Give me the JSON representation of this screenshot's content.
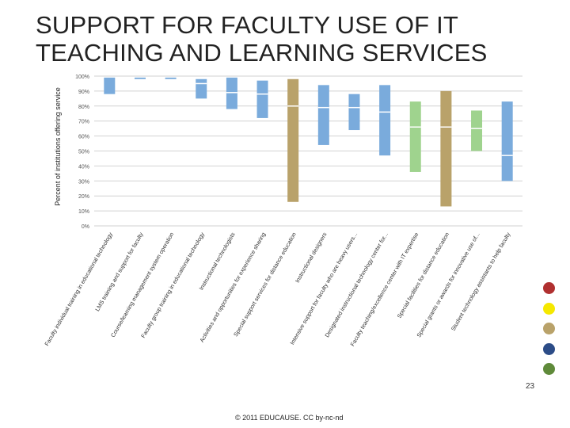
{
  "slide": {
    "title": "SUPPORT FOR FACULTY USE OF IT TEACHING AND LEARNING SERVICES",
    "slide_number": "23",
    "footer": "© 2011 EDUCAUSE. CC by-nc-nd"
  },
  "legend_dots": [
    {
      "name": "red-dot",
      "color": "#b03030"
    },
    {
      "name": "yellow-dot",
      "color": "#f5e800"
    },
    {
      "name": "tan-dot",
      "color": "#b9a26a"
    },
    {
      "name": "navy-dot",
      "color": "#2c4c87"
    },
    {
      "name": "green-dot",
      "color": "#5f8a3a"
    }
  ],
  "chart_data": {
    "type": "bar",
    "subtype": "floating-range-with-median",
    "ylabel": "Percent of institutions offering service",
    "ylim": [
      0,
      100
    ],
    "ytick_labels": [
      "0%",
      "10%",
      "20%",
      "30%",
      "40%",
      "50%",
      "60%",
      "70%",
      "80%",
      "90%",
      "100%"
    ],
    "grid": true,
    "categories": [
      "Faculty individual training in educational technology",
      "LMS training and support for faculty",
      "Course/learning management system operation",
      "Faculty group training in educational technology",
      "Instructional technologists",
      "Activities and opportunities for experience sharing",
      "Special support services for distance education",
      "Instructional designers",
      "Intensive support for faculty who are heavy users...",
      "Designated instructional technology center for...",
      "Faculty teaching/excellence center with IT expertise",
      "Special facilities for distance education",
      "Special grants or awards for innovative use of...",
      "Student technology assistants to help faculty"
    ],
    "ranges": [
      {
        "low": 88,
        "high": 99,
        "median": null,
        "color": "#7aabdc"
      },
      {
        "low": 98,
        "high": 99,
        "median": null,
        "color": "#7aabdc"
      },
      {
        "low": 98,
        "high": 99,
        "median": null,
        "color": "#7aabdc"
      },
      {
        "low": 85,
        "high": 98,
        "median": 95,
        "color": "#7aabdc"
      },
      {
        "low": 78,
        "high": 99,
        "median": 89,
        "color": "#7aabdc"
      },
      {
        "low": 72,
        "high": 97,
        "median": 88,
        "color": "#7aabdc"
      },
      {
        "low": 16,
        "high": 98,
        "median": 80,
        "color": "#b9a26a"
      },
      {
        "low": 54,
        "high": 94,
        "median": 79,
        "color": "#7aabdc"
      },
      {
        "low": 64,
        "high": 88,
        "median": 79,
        "color": "#7aabdc"
      },
      {
        "low": 47,
        "high": 94,
        "median": 76,
        "color": "#7aabdc"
      },
      {
        "low": 36,
        "high": 83,
        "median": 66,
        "color": "#9fd38e"
      },
      {
        "low": 13,
        "high": 90,
        "median": 66,
        "color": "#b9a26a"
      },
      {
        "low": 50,
        "high": 77,
        "median": 65,
        "color": "#9fd38e"
      },
      {
        "low": 30,
        "high": 83,
        "median": 47,
        "color": "#7aabdc"
      }
    ]
  }
}
